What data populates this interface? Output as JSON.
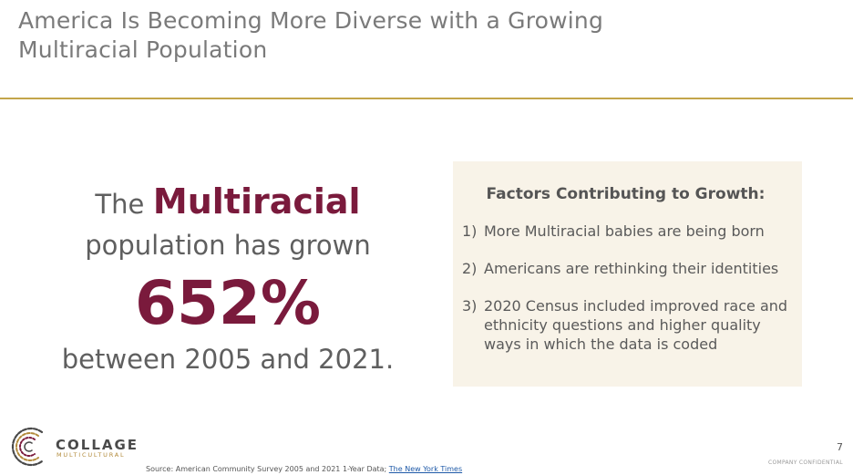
{
  "slide": {
    "title_line1": "America Is Becoming More Diverse with a Growing",
    "title_line2": "Multiracial Population"
  },
  "stat": {
    "lead": "The",
    "emphasis": "Multiracial",
    "line2": "population has grown",
    "figure": "652%",
    "line4": "between 2005 and 2021."
  },
  "factors": {
    "heading": "Factors Contributing to Growth:",
    "items": [
      {
        "num": "1)",
        "text": "More Multiracial babies are being born"
      },
      {
        "num": "2)",
        "text": "Americans are rethinking their identities"
      },
      {
        "num": "3)",
        "text": "2020 Census included improved race and ethnicity questions and higher quality ways in which the data is coded"
      }
    ]
  },
  "logo": {
    "word": "COLLAGE",
    "sub": "MULTICULTURAL"
  },
  "footer": {
    "source_prefix": "Source: American Community Survey 2005 and 2021 1-Year Data;",
    "source_link": "The New York Times",
    "page_number": "7",
    "confidential": "COMPANY CONFIDENTIAL"
  },
  "colors": {
    "accent": "#7a1a3c",
    "rule": "#c3a54a",
    "panel": "#f8f3e8"
  }
}
